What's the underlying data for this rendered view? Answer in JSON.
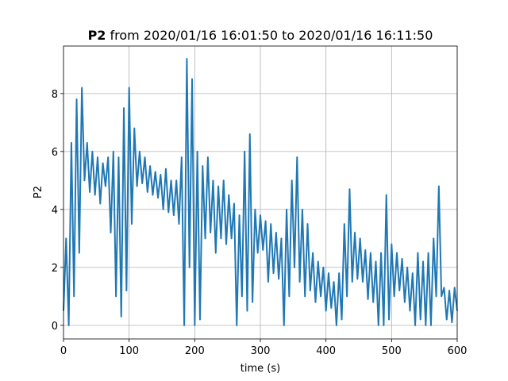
{
  "chart_data": {
    "type": "line",
    "title_variable": "P2",
    "title": "from 2020/01/16 16:01:50 to 2020/01/16 16:11:50",
    "xlabel": "time (s)",
    "ylabel": "P2",
    "xlim": [
      0,
      600
    ],
    "ylim": [
      -0.47,
      9.64
    ],
    "xticks": [
      0,
      100,
      200,
      300,
      400,
      500,
      600
    ],
    "yticks": [
      0,
      2,
      4,
      6,
      8
    ],
    "grid": true,
    "series": [
      {
        "color": "#1f77b4",
        "x": [
          0,
          4,
          8,
          12,
          16,
          20,
          24,
          28,
          32,
          36,
          40,
          44,
          48,
          52,
          56,
          60,
          64,
          68,
          72,
          76,
          80,
          84,
          88,
          92,
          96,
          100,
          104,
          108,
          112,
          116,
          120,
          124,
          128,
          132,
          136,
          140,
          144,
          148,
          152,
          156,
          160,
          164,
          168,
          172,
          176,
          180,
          184,
          188,
          192,
          196,
          200,
          204,
          208,
          212,
          216,
          220,
          224,
          228,
          232,
          236,
          240,
          244,
          248,
          252,
          256,
          260,
          264,
          268,
          272,
          276,
          280,
          284,
          288,
          292,
          296,
          300,
          304,
          308,
          312,
          316,
          320,
          324,
          328,
          332,
          336,
          340,
          344,
          348,
          352,
          356,
          360,
          364,
          368,
          372,
          376,
          380,
          384,
          388,
          392,
          396,
          400,
          404,
          408,
          412,
          416,
          420,
          424,
          428,
          432,
          436,
          440,
          444,
          448,
          452,
          456,
          460,
          464,
          468,
          472,
          476,
          480,
          484,
          488,
          492,
          496,
          500,
          504,
          508,
          512,
          516,
          520,
          524,
          528,
          532,
          536,
          540,
          544,
          548,
          552,
          556,
          560,
          564,
          568,
          572,
          576,
          580,
          584,
          588,
          592,
          596,
          600
        ],
        "values": [
          0.5,
          3.0,
          0,
          6.3,
          1.0,
          7.8,
          2.5,
          8.2,
          5.0,
          6.3,
          4.6,
          6.0,
          4.5,
          5.8,
          4.2,
          5.6,
          4.8,
          5.8,
          3.2,
          6.0,
          1.0,
          5.8,
          0.3,
          7.5,
          1.2,
          8.2,
          3.5,
          6.8,
          4.8,
          6.0,
          4.9,
          5.8,
          4.6,
          5.5,
          4.5,
          5.3,
          4.4,
          5.2,
          4.0,
          5.4,
          3.9,
          5.0,
          3.8,
          5.0,
          3.5,
          5.8,
          0,
          9.2,
          2.0,
          8.5,
          0,
          6.0,
          0.2,
          5.5,
          3.0,
          5.8,
          3.2,
          5.0,
          2.5,
          4.8,
          3.0,
          5.0,
          2.8,
          4.5,
          3.0,
          4.2,
          0,
          3.8,
          1.0,
          6.0,
          0.5,
          6.6,
          0.8,
          4.0,
          2.5,
          3.8,
          2.6,
          3.6,
          1.5,
          3.5,
          1.8,
          3.2,
          1.6,
          3.0,
          0,
          4.0,
          1.0,
          5.0,
          2.0,
          5.8,
          1.5,
          4.0,
          1.0,
          3.5,
          1.2,
          2.5,
          0.8,
          2.2,
          1.0,
          2.0,
          0.5,
          1.8,
          0.6,
          1.5,
          0,
          1.8,
          0.2,
          3.5,
          1.0,
          4.7,
          1.5,
          3.2,
          1.6,
          3.0,
          1.5,
          2.6,
          0.9,
          2.5,
          0.8,
          2.2,
          0,
          2.5,
          0,
          4.5,
          0.2,
          2.8,
          1.0,
          2.5,
          1.2,
          2.3,
          0.8,
          2.0,
          0.5,
          1.8,
          0,
          2.5,
          0.2,
          2.2,
          0,
          2.5,
          0,
          3.0,
          1.0,
          4.8,
          1.0,
          1.3,
          0.2,
          1.2,
          0.1,
          1.3,
          0.5
        ]
      }
    ]
  }
}
